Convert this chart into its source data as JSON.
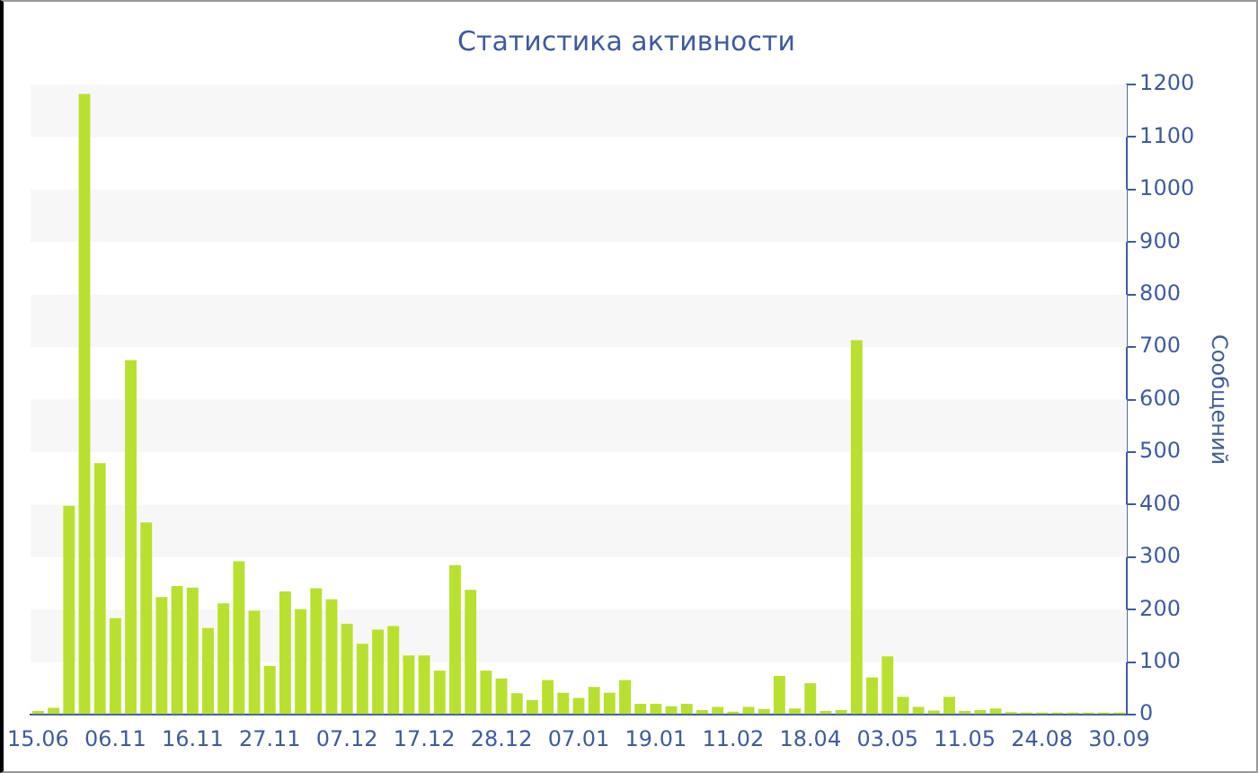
{
  "chart_data": {
    "type": "bar",
    "title": "Статистика активности",
    "ylabel": "Сообщений",
    "categories": [
      "15.06",
      null,
      null,
      null,
      null,
      "06.11",
      null,
      null,
      null,
      null,
      "16.11",
      null,
      null,
      null,
      null,
      "27.11",
      null,
      null,
      null,
      null,
      "07.12",
      null,
      null,
      null,
      null,
      "17.12",
      null,
      null,
      null,
      null,
      "28.12",
      null,
      null,
      null,
      null,
      "07.01",
      null,
      null,
      null,
      null,
      "19.01",
      null,
      null,
      null,
      null,
      "11.02",
      null,
      null,
      null,
      null,
      "18.04",
      null,
      null,
      null,
      null,
      "03.05",
      null,
      null,
      null,
      null,
      "11.05",
      null,
      null,
      null,
      null,
      "24.08",
      null,
      null,
      null,
      null,
      "30.09"
    ],
    "values": [
      7,
      13,
      398,
      1182,
      479,
      184,
      675,
      366,
      224,
      245,
      242,
      165,
      212,
      292,
      198,
      93,
      235,
      201,
      241,
      220,
      173,
      135,
      162,
      169,
      113,
      113,
      84,
      285,
      238,
      84,
      69,
      41,
      28,
      66,
      42,
      32,
      53,
      42,
      66,
      21,
      21,
      16,
      21,
      9,
      15,
      6,
      15,
      11,
      74,
      12,
      60,
      7,
      9,
      713,
      71,
      111,
      34,
      15,
      8,
      34,
      7,
      9,
      12,
      5,
      4,
      4,
      4,
      4,
      4,
      4,
      4
    ],
    "color": "#b8e12f",
    "ylim": [
      0,
      1200
    ],
    "yticks": [
      0,
      100,
      200,
      300,
      400,
      500,
      600,
      700,
      800,
      900,
      1000,
      1100,
      1200
    ],
    "bands": [
      {
        "axis": "y",
        "from": 100,
        "to": 200,
        "color": "#f7f7f7"
      },
      {
        "axis": "y",
        "from": 300,
        "to": 400,
        "color": "#f7f7f7"
      },
      {
        "axis": "y",
        "from": 500,
        "to": 600,
        "color": "#f7f7f7"
      },
      {
        "axis": "y",
        "from": 700,
        "to": 800,
        "color": "#f7f7f7"
      },
      {
        "axis": "y",
        "from": 900,
        "to": 1000,
        "color": "#f7f7f7"
      },
      {
        "axis": "y",
        "from": 1100,
        "to": 1200,
        "color": "#f7f7f7"
      }
    ]
  }
}
